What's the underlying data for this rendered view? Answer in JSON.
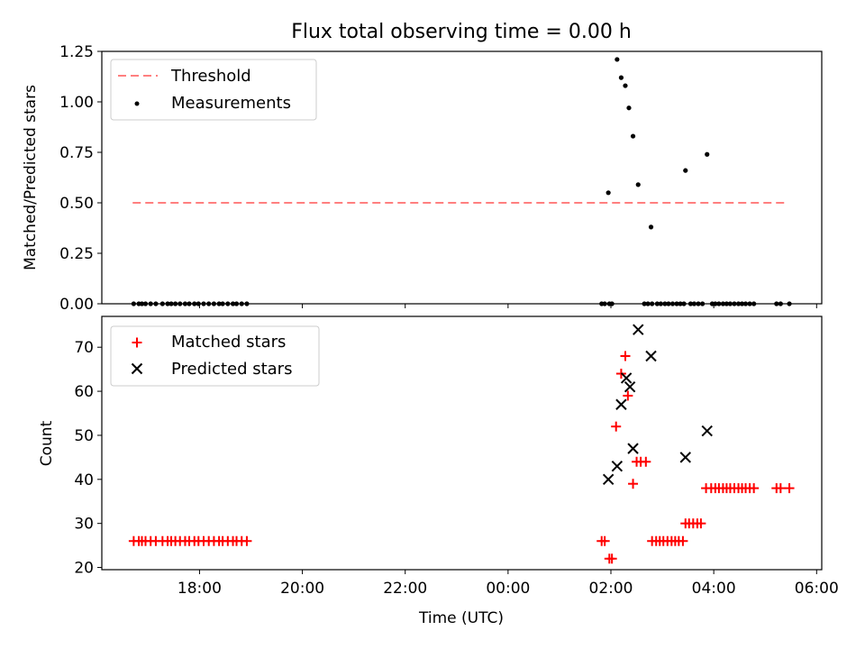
{
  "title": "Flux total observing time = 0.00 h",
  "colors": {
    "threshold": "#ff7f7f",
    "measurement": "#000000",
    "matched": "#ff0000",
    "predicted": "#000000"
  },
  "chart_data": [
    {
      "type": "scatter",
      "panel": "top",
      "ylabel": "Matched/Predicted stars",
      "xlim": [
        16.1,
        30.1
      ],
      "ylim": [
        0,
        1.25
      ],
      "yticks": [
        0.0,
        0.25,
        0.5,
        0.75,
        1.0,
        1.25
      ],
      "ytick_labels": [
        "0.00",
        "0.25",
        "0.50",
        "0.75",
        "1.00",
        "1.25"
      ],
      "legend": {
        "position": "top-left",
        "entries": [
          "Threshold",
          "Measurements"
        ]
      },
      "threshold": {
        "name": "Threshold",
        "x": [
          16.7,
          29.45
        ],
        "y": 0.5
      },
      "series": [
        {
          "name": "Measurements",
          "points": [
            [
              16.72,
              0
            ],
            [
              16.82,
              0
            ],
            [
              16.88,
              0
            ],
            [
              16.95,
              0
            ],
            [
              17.05,
              0
            ],
            [
              17.15,
              0
            ],
            [
              17.28,
              0
            ],
            [
              17.38,
              0
            ],
            [
              17.45,
              0
            ],
            [
              17.53,
              0
            ],
            [
              17.62,
              0
            ],
            [
              17.72,
              0
            ],
            [
              17.8,
              0
            ],
            [
              17.9,
              0
            ],
            [
              17.98,
              0
            ],
            [
              18.08,
              0
            ],
            [
              18.18,
              0
            ],
            [
              18.28,
              0
            ],
            [
              18.38,
              0
            ],
            [
              18.45,
              0
            ],
            [
              18.55,
              0
            ],
            [
              18.65,
              0
            ],
            [
              18.72,
              0
            ],
            [
              18.82,
              0
            ],
            [
              18.92,
              0
            ],
            [
              25.82,
              0
            ],
            [
              25.88,
              0
            ],
            [
              25.97,
              0
            ],
            [
              26.02,
              0
            ],
            [
              25.95,
              0.55
            ],
            [
              26.12,
              1.21
            ],
            [
              26.2,
              1.12
            ],
            [
              26.28,
              1.08
            ],
            [
              26.35,
              0.97
            ],
            [
              26.43,
              0.83
            ],
            [
              26.53,
              0.59
            ],
            [
              26.78,
              0.38
            ],
            [
              27.45,
              0.66
            ],
            [
              27.87,
              0.74
            ],
            [
              26.65,
              0
            ],
            [
              26.72,
              0
            ],
            [
              26.8,
              0
            ],
            [
              26.9,
              0
            ],
            [
              26.97,
              0
            ],
            [
              27.05,
              0
            ],
            [
              27.12,
              0
            ],
            [
              27.2,
              0
            ],
            [
              27.28,
              0
            ],
            [
              27.35,
              0
            ],
            [
              27.42,
              0
            ],
            [
              27.55,
              0
            ],
            [
              27.62,
              0
            ],
            [
              27.7,
              0
            ],
            [
              27.78,
              0
            ],
            [
              27.97,
              0
            ],
            [
              28.03,
              0
            ],
            [
              28.1,
              0
            ],
            [
              28.18,
              0
            ],
            [
              28.25,
              0
            ],
            [
              28.32,
              0
            ],
            [
              28.4,
              0
            ],
            [
              28.48,
              0
            ],
            [
              28.55,
              0
            ],
            [
              28.62,
              0
            ],
            [
              28.7,
              0
            ],
            [
              28.78,
              0
            ],
            [
              29.22,
              0
            ],
            [
              29.3,
              0
            ],
            [
              29.47,
              0
            ]
          ]
        }
      ]
    },
    {
      "type": "scatter",
      "panel": "bottom",
      "xlabel": "Time (UTC)",
      "ylabel": "Count",
      "xlim": [
        16.1,
        30.1
      ],
      "ylim": [
        19.5,
        77
      ],
      "yticks": [
        20,
        30,
        40,
        50,
        60,
        70
      ],
      "ytick_labels": [
        "20",
        "30",
        "40",
        "50",
        "60",
        "70"
      ],
      "xticks": [
        18,
        20,
        22,
        24,
        26,
        28,
        30
      ],
      "xtick_labels": [
        "18:00",
        "20:00",
        "22:00",
        "00:00",
        "02:00",
        "04:00",
        "06:00"
      ],
      "legend": {
        "position": "top-left",
        "entries": [
          "Matched stars",
          "Predicted stars"
        ]
      },
      "series": [
        {
          "name": "Matched stars",
          "marker": "plus",
          "points": [
            [
              16.72,
              26
            ],
            [
              16.82,
              26
            ],
            [
              16.88,
              26
            ],
            [
              16.95,
              26
            ],
            [
              17.05,
              26
            ],
            [
              17.15,
              26
            ],
            [
              17.28,
              26
            ],
            [
              17.38,
              26
            ],
            [
              17.45,
              26
            ],
            [
              17.53,
              26
            ],
            [
              17.62,
              26
            ],
            [
              17.72,
              26
            ],
            [
              17.8,
              26
            ],
            [
              17.9,
              26
            ],
            [
              17.98,
              26
            ],
            [
              18.08,
              26
            ],
            [
              18.18,
              26
            ],
            [
              18.28,
              26
            ],
            [
              18.38,
              26
            ],
            [
              18.45,
              26
            ],
            [
              18.55,
              26
            ],
            [
              18.65,
              26
            ],
            [
              18.72,
              26
            ],
            [
              18.82,
              26
            ],
            [
              18.92,
              26
            ],
            [
              25.82,
              26
            ],
            [
              25.88,
              26
            ],
            [
              25.97,
              22
            ],
            [
              26.02,
              22
            ],
            [
              26.1,
              52
            ],
            [
              26.2,
              64
            ],
            [
              26.28,
              68
            ],
            [
              26.33,
              59
            ],
            [
              26.43,
              39
            ],
            [
              26.5,
              44
            ],
            [
              26.58,
              44
            ],
            [
              26.68,
              44
            ],
            [
              26.8,
              26
            ],
            [
              26.88,
              26
            ],
            [
              26.95,
              26
            ],
            [
              27.02,
              26
            ],
            [
              27.1,
              26
            ],
            [
              27.18,
              26
            ],
            [
              27.25,
              26
            ],
            [
              27.32,
              26
            ],
            [
              27.4,
              26
            ],
            [
              27.45,
              30
            ],
            [
              27.52,
              30
            ],
            [
              27.6,
              30
            ],
            [
              27.68,
              30
            ],
            [
              27.75,
              30
            ],
            [
              27.85,
              38
            ],
            [
              27.95,
              38
            ],
            [
              28.03,
              38
            ],
            [
              28.1,
              38
            ],
            [
              28.18,
              38
            ],
            [
              28.25,
              38
            ],
            [
              28.32,
              38
            ],
            [
              28.4,
              38
            ],
            [
              28.48,
              38
            ],
            [
              28.55,
              38
            ],
            [
              28.62,
              38
            ],
            [
              28.7,
              38
            ],
            [
              28.78,
              38
            ],
            [
              29.22,
              38
            ],
            [
              29.3,
              38
            ],
            [
              29.47,
              38
            ]
          ]
        },
        {
          "name": "Predicted stars",
          "marker": "x",
          "points": [
            [
              25.95,
              40
            ],
            [
              26.12,
              43
            ],
            [
              26.2,
              57
            ],
            [
              26.3,
              63
            ],
            [
              26.37,
              61
            ],
            [
              26.43,
              47
            ],
            [
              26.53,
              74
            ],
            [
              26.78,
              68
            ],
            [
              27.45,
              45
            ],
            [
              27.87,
              51
            ]
          ]
        }
      ]
    }
  ]
}
